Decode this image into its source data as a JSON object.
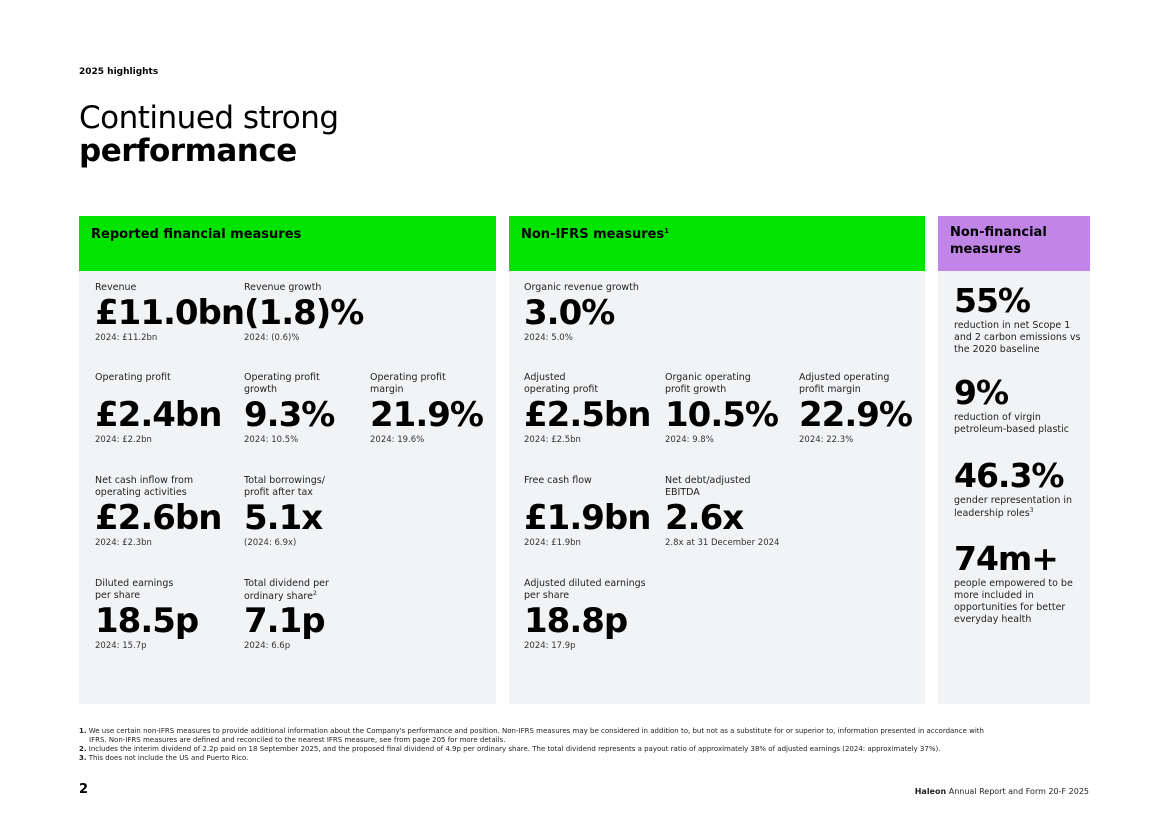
{
  "header": {
    "kicker": "2025 highlights",
    "title_light": "Continued strong",
    "title_bold": "performance"
  },
  "reported": {
    "title": "Reported financial measures",
    "metrics": [
      {
        "label": "Revenue",
        "value": "£11.0bn",
        "prior": "2024: £11.2bn"
      },
      {
        "label": "Revenue growth",
        "value": "(1.8)%",
        "prior": "2024: (0.6)%"
      },
      {
        "label": "Operating profit",
        "value": "£2.4bn",
        "prior": "2024: £2.2bn"
      },
      {
        "label": "Operating profit growth",
        "value": "9.3%",
        "prior": "2024: 10.5%"
      },
      {
        "label": "Operating profit margin",
        "value": "21.9%",
        "prior": "2024: 19.6%"
      },
      {
        "label": "Net cash inflow from operating activities",
        "value": "£2.6bn",
        "prior": "2024: £2.3bn"
      },
      {
        "label": "Total borrowings/ profit after tax",
        "value": "5.1x",
        "prior": "(2024: 6.9x)"
      },
      {
        "label": "Diluted earnings per share",
        "value": "18.5p",
        "prior": "2024: 15.7p"
      },
      {
        "label": "Total dividend per ordinary share",
        "label_sup": "2",
        "value": "7.1p",
        "prior": "2024: 6.6p"
      }
    ]
  },
  "non_ifrs": {
    "title": "Non-IFRS measures",
    "title_sup": "1",
    "metrics": [
      {
        "label": "Organic revenue growth",
        "value": "3.0%",
        "prior": "2024: 5.0%"
      },
      {
        "label": "Adjusted operating profit",
        "value": "£2.5bn",
        "prior": "2024: £2.5bn"
      },
      {
        "label": "Organic operating profit growth",
        "value": "10.5%",
        "prior": "2024: 9.8%"
      },
      {
        "label": "Adjusted operating profit margin",
        "value": "22.9%",
        "prior": "2024: 22.3%"
      },
      {
        "label": "Free cash flow",
        "value": "£1.9bn",
        "prior": "2024: £1.9bn"
      },
      {
        "label": "Net debt/adjusted EBITDA",
        "value": "2.6x",
        "prior": "2.8x at 31 December 2024"
      },
      {
        "label": "Adjusted diluted earnings per share",
        "value": "18.8p",
        "prior": "2024: 17.9p"
      }
    ]
  },
  "non_financial": {
    "title": "Non-financial measures",
    "metrics": [
      {
        "value": "55%",
        "desc": "reduction in net Scope 1 and 2 carbon emissions vs the 2020 baseline"
      },
      {
        "value": "9%",
        "desc": "reduction of virgin petroleum-based plastic"
      },
      {
        "value": "46.3%",
        "desc": "gender representation in leadership roles",
        "desc_sup": "3"
      },
      {
        "value": "74m+",
        "desc": "people empowered to be more included in opportunities for better everyday health"
      }
    ]
  },
  "footnotes": [
    {
      "num": "1.",
      "text": "We use certain non-IFRS measures to provide additional information about the Company's performance and position. Non-IFRS measures may be considered in addition to, but not as a substitute for or superior to, information presented in accordance with",
      "cont": "IFRS. Non-IFRS measures are defined and reconciled to the nearest IFRS measure, see from page 205 for more details."
    },
    {
      "num": "2.",
      "text": "Includes the interim dividend of 2.2p paid on 18 September 2025, and the proposed final dividend of 4.9p per ordinary share. The total dividend represents a payout ratio of approximately 38% of adjusted earnings (2024: approximately 37%)."
    },
    {
      "num": "3.",
      "text": "This does not include the US and Puerto Rico."
    }
  ],
  "footer": {
    "page_number": "2",
    "brand": "Haleon",
    "report": "Annual Report and Form 20-F 2025"
  }
}
